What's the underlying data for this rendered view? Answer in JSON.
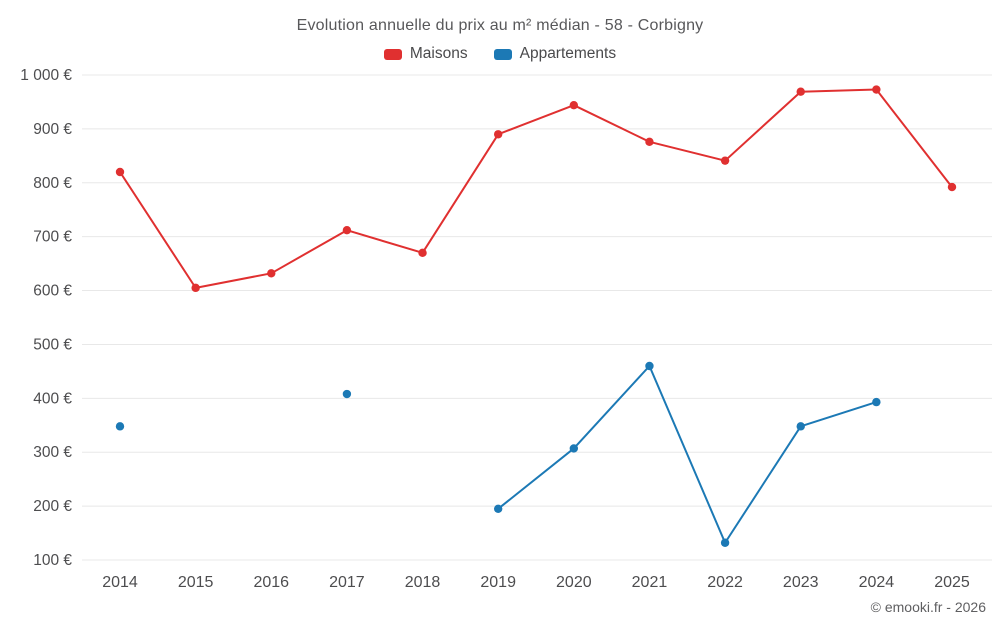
{
  "chart_data": {
    "type": "line",
    "title": "Evolution annuelle du prix au m² médian - 58 - Corbigny",
    "x": [
      2014,
      2015,
      2016,
      2017,
      2018,
      2019,
      2020,
      2021,
      2022,
      2023,
      2024,
      2025
    ],
    "series": [
      {
        "name": "Maisons",
        "color": "#e03030",
        "values": [
          820,
          605,
          632,
          712,
          670,
          890,
          944,
          876,
          841,
          969,
          973,
          792
        ]
      },
      {
        "name": "Appartements",
        "color": "#1c79b5",
        "values": [
          348,
          null,
          null,
          408,
          null,
          195,
          307,
          460,
          132,
          348,
          393,
          null
        ]
      }
    ],
    "ylim": [
      100,
      1000
    ],
    "ytick_step": 100,
    "ytick_suffix": " €",
    "grid": true,
    "legend_position": "top",
    "footer": "© emooki.fr - 2026"
  },
  "colors": {
    "grid": "#e8e8e8",
    "tick_label": "#4d4d4f",
    "title": "#58585a"
  }
}
